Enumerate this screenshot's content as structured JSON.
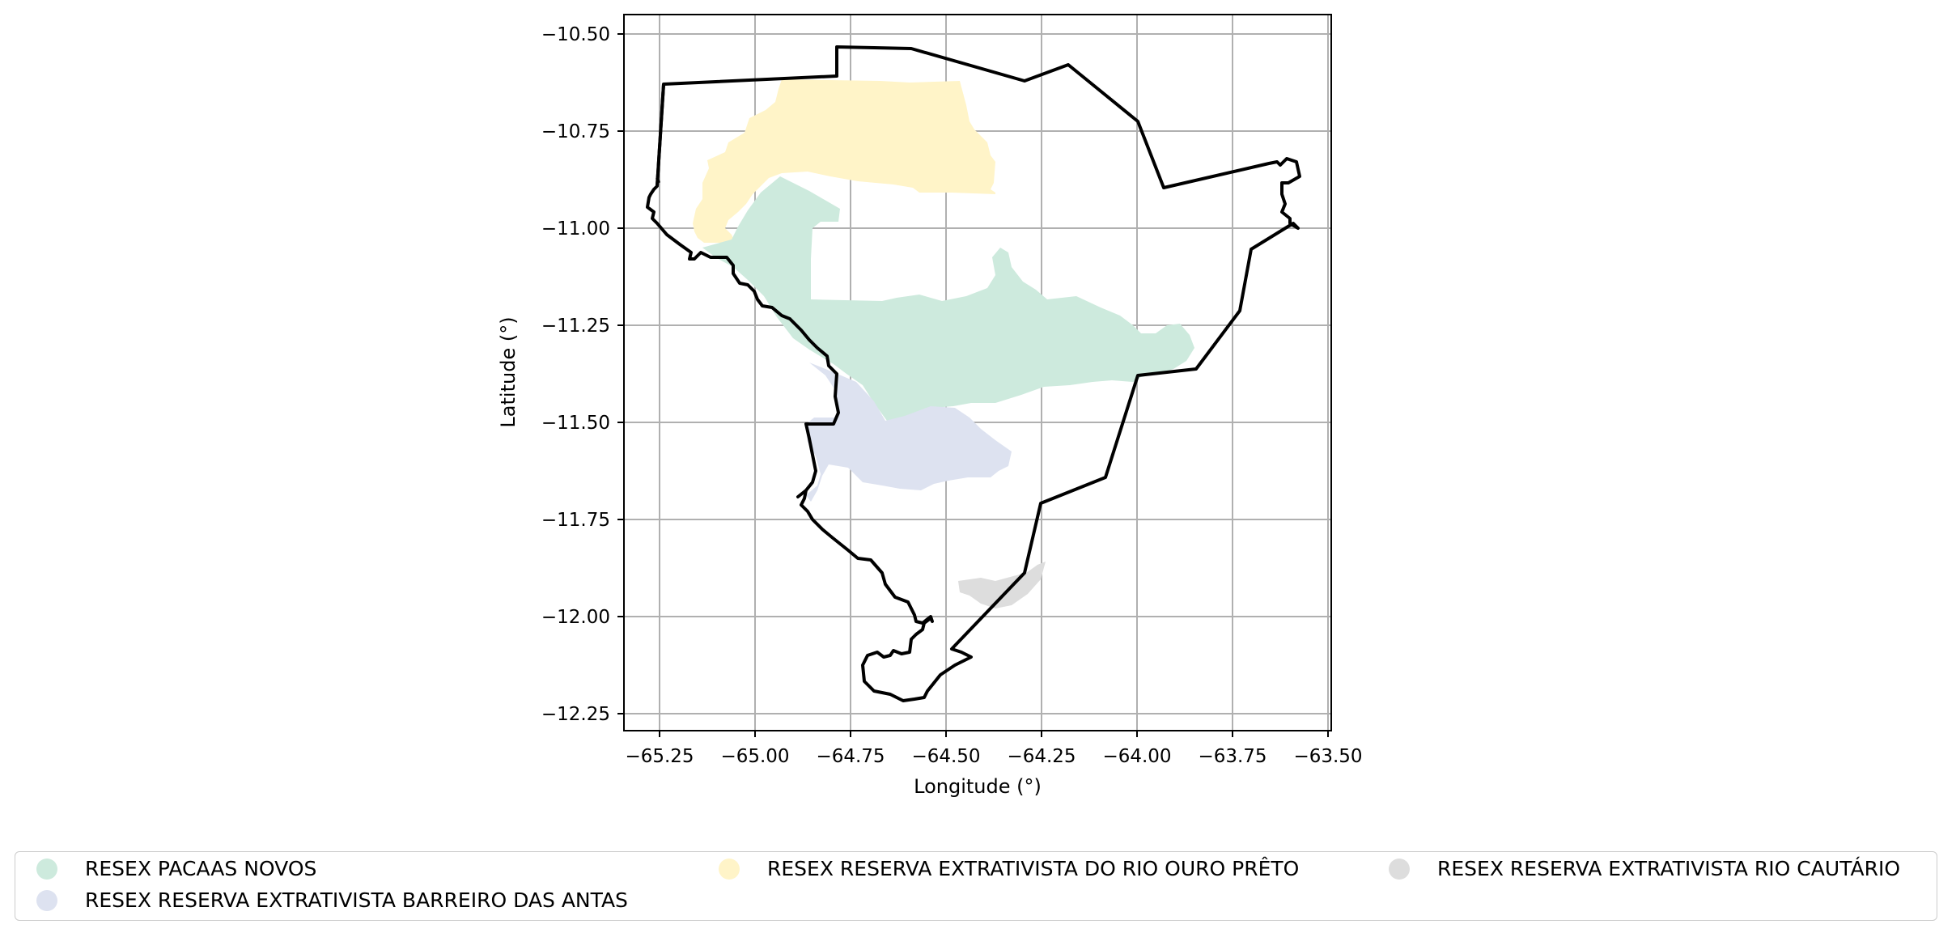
{
  "map": {
    "xlabel": "Longitude (°)",
    "ylabel": "Latitude (°)",
    "xlim": [
      -65.35,
      -63.48
    ],
    "ylim": [
      -12.3,
      -10.45
    ],
    "grid": true,
    "x_ticks": [
      "−65.25",
      "−65.00",
      "−64.75",
      "−64.50",
      "−64.25",
      "−64.00",
      "−63.75",
      "−63.50"
    ],
    "y_ticks": [
      "−10.50",
      "−10.75",
      "−11.00",
      "−11.25",
      "−11.50",
      "−11.75",
      "−12.00",
      "−12.25"
    ],
    "outline_color": "#000000"
  },
  "legend": {
    "items": [
      {
        "label": "RESEX PACAAS NOVOS",
        "color": "#cdeadd"
      },
      {
        "label": "RESEX RESERVA EXTRATIVISTA DO RIO OURO PRÊTO",
        "color": "#fff4c8"
      },
      {
        "label": "RESEX RESERVA EXTRATIVISTA RIO CAUTÁRIO",
        "color": "#dddddd"
      },
      {
        "label": "RESEX RESERVA EXTRATIVISTA BARREIRO DAS ANTAS",
        "color": "#dde2f0"
      }
    ]
  }
}
